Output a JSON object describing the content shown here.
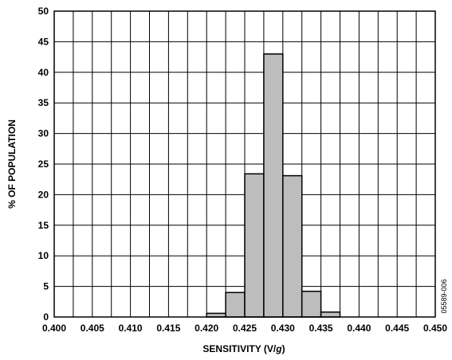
{
  "chart_data": {
    "type": "bar",
    "xlabel_main": "SENSITIVITY (V/",
    "xlabel_italic": "g",
    "xlabel_end": ")",
    "ylabel": "% OF POPULATION",
    "xlim": [
      0.4,
      0.45
    ],
    "ylim": [
      0,
      50
    ],
    "x_ticks": [
      "0.400",
      "0.405",
      "0.410",
      "0.415",
      "0.420",
      "0.425",
      "0.430",
      "0.435",
      "0.440",
      "0.445",
      "0.450"
    ],
    "y_ticks": [
      "0",
      "5",
      "10",
      "15",
      "20",
      "25",
      "30",
      "35",
      "40",
      "45",
      "50"
    ],
    "grid": true,
    "bin_width": 0.0025,
    "bins": [
      {
        "x0": 0.42,
        "value": 0.6
      },
      {
        "x0": 0.4225,
        "value": 4.0
      },
      {
        "x0": 0.425,
        "value": 23.4
      },
      {
        "x0": 0.4275,
        "value": 43.0
      },
      {
        "x0": 0.43,
        "value": 23.1
      },
      {
        "x0": 0.4325,
        "value": 4.2
      },
      {
        "x0": 0.435,
        "value": 0.8
      }
    ],
    "bar_color": "#bdbdbd",
    "figure_id": "05589-006"
  }
}
